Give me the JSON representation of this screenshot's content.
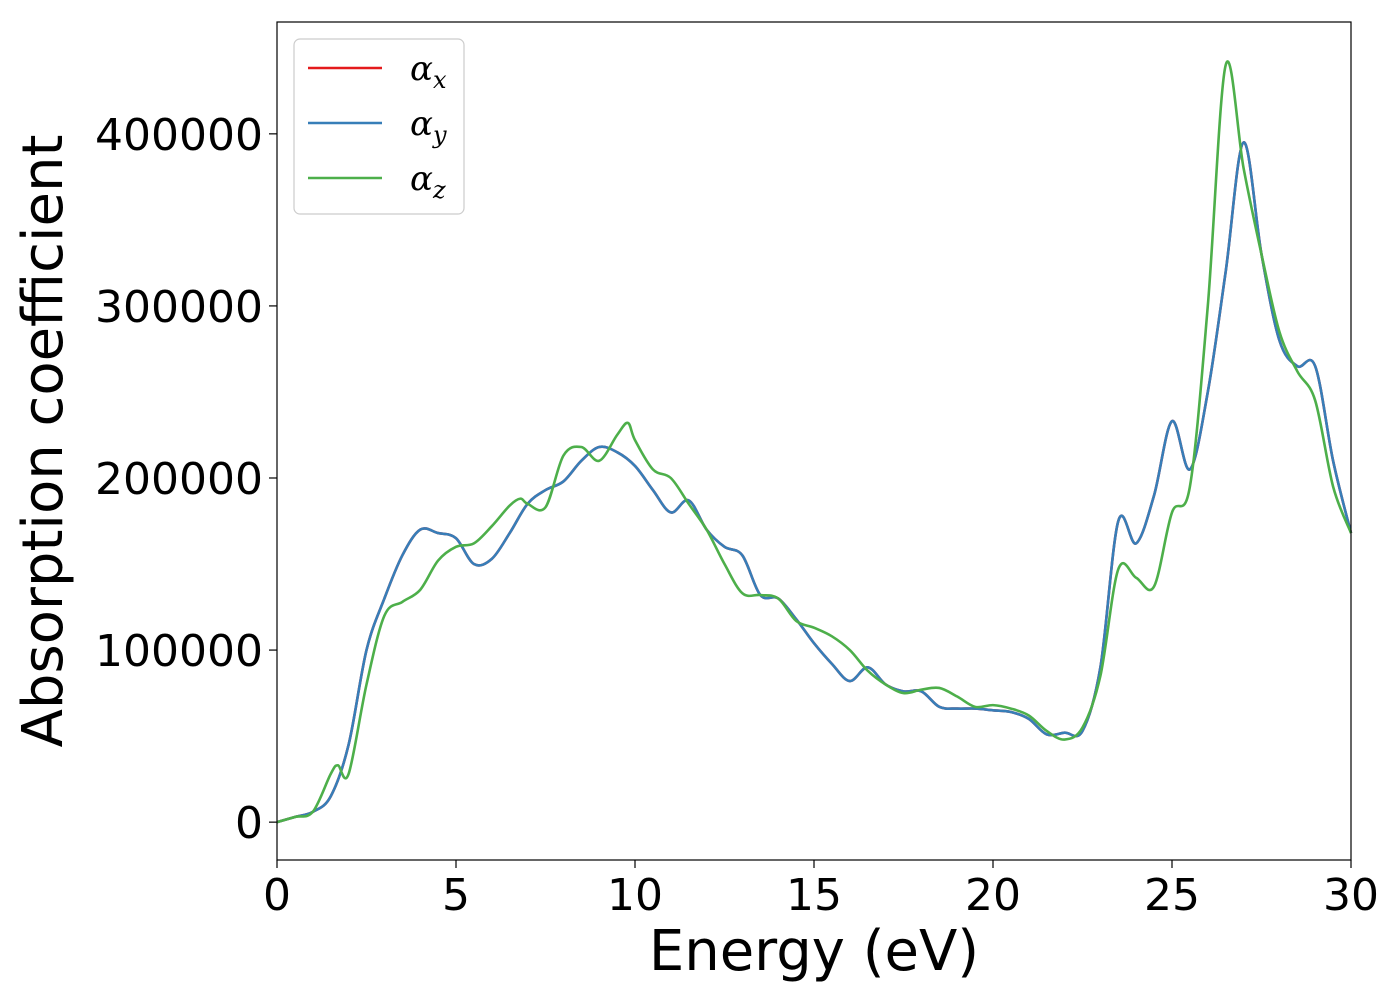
{
  "chart_data": {
    "type": "line",
    "title": "",
    "xlabel": "Energy (eV)",
    "ylabel": "Absorption coefficient",
    "xlim": [
      0,
      30
    ],
    "ylim": [
      -22000,
      465000
    ],
    "xticks": [
      0,
      5,
      10,
      15,
      20,
      25,
      30
    ],
    "yticks": [
      0,
      100000,
      200000,
      300000,
      400000
    ],
    "grid": false,
    "legend_position": "upper-left",
    "series": [
      {
        "name": "α_x",
        "legend_symbol": "α",
        "legend_subscript": "x",
        "color": "#e41a1c",
        "x": [
          0,
          0.5,
          1,
          1.5,
          2,
          2.5,
          3,
          3.5,
          4,
          4.5,
          5,
          5.5,
          6,
          6.5,
          7,
          7.5,
          8,
          8.5,
          9,
          9.5,
          10,
          10.5,
          11,
          11.5,
          12,
          12.5,
          13,
          13.5,
          14,
          14.5,
          15,
          15.5,
          16,
          16.5,
          17,
          17.5,
          18,
          18.5,
          19,
          19.5,
          20,
          20.5,
          21,
          21.5,
          22,
          22.5,
          23,
          23.5,
          24,
          24.5,
          25,
          25.5,
          26,
          26.5,
          27,
          27.5,
          28,
          28.5,
          29,
          29.5,
          30
        ],
        "y": [
          0,
          3000,
          6000,
          15000,
          45000,
          100000,
          130000,
          155000,
          170000,
          168000,
          165000,
          150000,
          153000,
          168000,
          185000,
          193000,
          198000,
          210000,
          218000,
          215000,
          207000,
          193000,
          180000,
          187000,
          170000,
          160000,
          155000,
          132000,
          130000,
          118000,
          104000,
          92000,
          82000,
          90000,
          80000,
          76000,
          76000,
          67000,
          66000,
          66000,
          65000,
          64000,
          60000,
          51000,
          52000,
          53000,
          90000,
          175000,
          162000,
          190000,
          233000,
          205000,
          250000,
          320000,
          395000,
          330000,
          280000,
          265000,
          265000,
          210000,
          168000
        ]
      },
      {
        "name": "α_y",
        "legend_symbol": "α",
        "legend_subscript": "y",
        "color": "#377eb8",
        "x": [
          0,
          0.5,
          1,
          1.5,
          2,
          2.5,
          3,
          3.5,
          4,
          4.5,
          5,
          5.5,
          6,
          6.5,
          7,
          7.5,
          8,
          8.5,
          9,
          9.5,
          10,
          10.5,
          11,
          11.5,
          12,
          12.5,
          13,
          13.5,
          14,
          14.5,
          15,
          15.5,
          16,
          16.5,
          17,
          17.5,
          18,
          18.5,
          19,
          19.5,
          20,
          20.5,
          21,
          21.5,
          22,
          22.5,
          23,
          23.5,
          24,
          24.5,
          25,
          25.5,
          26,
          26.5,
          27,
          27.5,
          28,
          28.5,
          29,
          29.5,
          30
        ],
        "y": [
          0,
          3000,
          6000,
          15000,
          45000,
          100000,
          130000,
          155000,
          170000,
          168000,
          165000,
          150000,
          153000,
          168000,
          185000,
          193000,
          198000,
          210000,
          218000,
          215000,
          207000,
          193000,
          180000,
          187000,
          170000,
          160000,
          155000,
          132000,
          130000,
          118000,
          104000,
          92000,
          82000,
          90000,
          80000,
          76000,
          76000,
          67000,
          66000,
          66000,
          65000,
          64000,
          60000,
          51000,
          52000,
          53000,
          90000,
          175000,
          162000,
          190000,
          233000,
          205000,
          250000,
          320000,
          395000,
          330000,
          280000,
          265000,
          265000,
          210000,
          168000
        ]
      },
      {
        "name": "α_z",
        "legend_symbol": "α",
        "legend_subscript": "z",
        "color": "#4daf4a",
        "x": [
          0,
          0.5,
          1,
          1.5,
          1.7,
          2,
          2.5,
          3,
          3.5,
          4,
          4.5,
          5,
          5.5,
          6,
          6.5,
          6.8,
          7,
          7.5,
          8,
          8.5,
          9,
          9.5,
          9.8,
          10,
          10.5,
          11,
          11.5,
          12,
          12.5,
          13,
          13.5,
          14,
          14.5,
          15,
          15.5,
          16,
          16.5,
          17,
          17.5,
          18,
          18.5,
          19,
          19.5,
          20,
          20.5,
          21,
          21.5,
          22,
          22.5,
          23,
          23.5,
          24,
          24.5,
          25,
          25.5,
          26,
          26.5,
          27,
          27.5,
          28,
          28.5,
          29,
          29.5,
          30
        ],
        "y": [
          0,
          3000,
          6000,
          28000,
          33000,
          28000,
          80000,
          120000,
          128000,
          135000,
          152000,
          160000,
          162000,
          172000,
          184000,
          188000,
          185000,
          183000,
          213000,
          218000,
          210000,
          225000,
          232000,
          222000,
          205000,
          200000,
          185000,
          170000,
          150000,
          133000,
          132000,
          130000,
          117000,
          113000,
          108000,
          100000,
          88000,
          80000,
          75000,
          77000,
          78000,
          73000,
          67000,
          68000,
          66000,
          62000,
          53000,
          48000,
          55000,
          85000,
          147000,
          142000,
          137000,
          180000,
          195000,
          300000,
          440000,
          380000,
          330000,
          285000,
          262000,
          245000,
          195000,
          168000
        ]
      }
    ]
  }
}
